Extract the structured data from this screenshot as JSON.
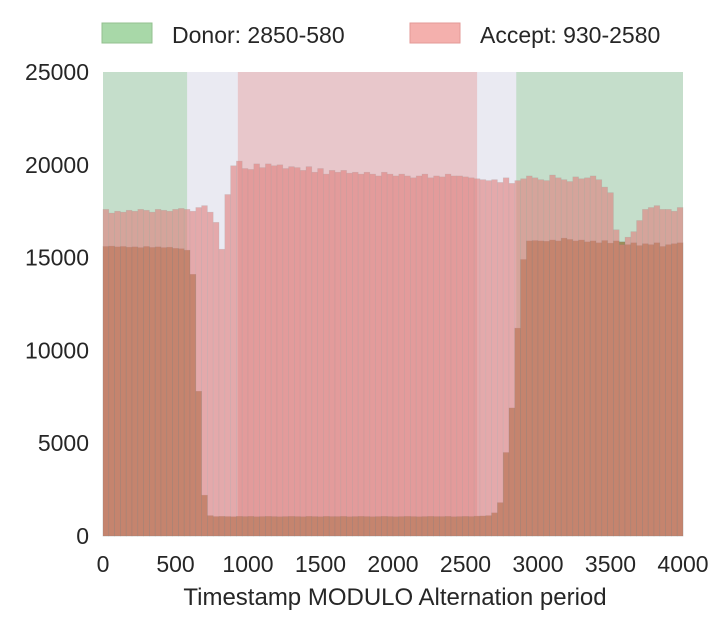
{
  "chart_data": {
    "type": "bar",
    "title": "",
    "xlabel": "Timestamp MODULO Alternation period",
    "ylabel": "",
    "xlim": [
      0,
      4000
    ],
    "ylim": [
      0,
      25000
    ],
    "xticks": [
      0,
      500,
      1000,
      1500,
      2000,
      2500,
      3000,
      3500,
      4000
    ],
    "xtick_labels": [
      "0",
      "500",
      "1000",
      "1500",
      "2000",
      "2500",
      "3000",
      "3500",
      "4000"
    ],
    "yticks": [
      0,
      5000,
      10000,
      15000,
      20000,
      25000
    ],
    "ytick_labels": [
      "0",
      "5000",
      "10000",
      "15000",
      "20000",
      "25000"
    ],
    "bin_width": 40,
    "grid": false,
    "legend_position": "top",
    "background_color": "#eaeaf2",
    "regions": [
      {
        "label": "Donor: 2850-580",
        "ranges": [
          [
            0,
            580
          ],
          [
            2850,
            4000
          ]
        ],
        "color": "#a8d8a8",
        "fill_color": "#c5decb"
      },
      {
        "label": "Accept: 930-2580",
        "ranges": [
          [
            930,
            2580
          ]
        ],
        "color": "#f4b0ad",
        "fill_color": "#e8c7cb"
      }
    ],
    "series": [
      {
        "color": "#9a8a55",
        "values": [
          15600,
          15620,
          15580,
          15600,
          15560,
          15580,
          15540,
          15600,
          15550,
          15580,
          15540,
          15560,
          15500,
          15480,
          15400,
          14100,
          7800,
          2200,
          1100,
          1050,
          1060,
          1050,
          1040,
          1060,
          1050,
          1060,
          1040,
          1050,
          1060,
          1050,
          1040,
          1050,
          1060,
          1050,
          1040,
          1060,
          1050,
          1040,
          1060,
          1050,
          1050,
          1060,
          1040,
          1050,
          1060,
          1050,
          1040,
          1050,
          1060,
          1050,
          1040,
          1050,
          1060,
          1050,
          1040,
          1050,
          1060,
          1050,
          1050,
          1060,
          1040,
          1050,
          1060,
          1050,
          1070,
          1080,
          1100,
          1250,
          1800,
          4500,
          6900,
          11200,
          14900,
          15900,
          15920,
          15900,
          15880,
          15950,
          15900,
          16050,
          15980,
          15900,
          15950,
          15850,
          15900,
          15800,
          15920,
          15780,
          15900,
          15850,
          15700,
          15800,
          15650,
          15750,
          15700,
          15800,
          15600,
          15700,
          15750,
          15800
        ]
      },
      {
        "color": "#e17f7c",
        "values": [
          17600,
          17400,
          17500,
          17450,
          17550,
          17500,
          17600,
          17550,
          17450,
          17600,
          17550,
          17500,
          17600,
          17650,
          17600,
          17500,
          17700,
          17800,
          17450,
          16900,
          15450,
          18400,
          19950,
          20200,
          19800,
          19750,
          20050,
          19850,
          20050,
          19950,
          20000,
          19800,
          19900,
          19850,
          19700,
          19900,
          19600,
          19800,
          19500,
          19700,
          19600,
          19700,
          19550,
          19600,
          19500,
          19600,
          19500,
          19400,
          19600,
          19500,
          19400,
          19500,
          19400,
          19300,
          19400,
          19500,
          19300,
          19400,
          19350,
          19500,
          19400,
          19400,
          19350,
          19300,
          19250,
          19200,
          19150,
          19200,
          19050,
          19300,
          19000,
          19150,
          19250,
          19400,
          19300,
          19200,
          19150,
          19450,
          19300,
          19200,
          19100,
          19350,
          19250,
          19300,
          19400,
          19200,
          18800,
          18500,
          16500,
          15700,
          16100,
          16400,
          17000,
          17600,
          17700,
          17800,
          17600,
          17600,
          17500,
          17700
        ]
      }
    ]
  }
}
